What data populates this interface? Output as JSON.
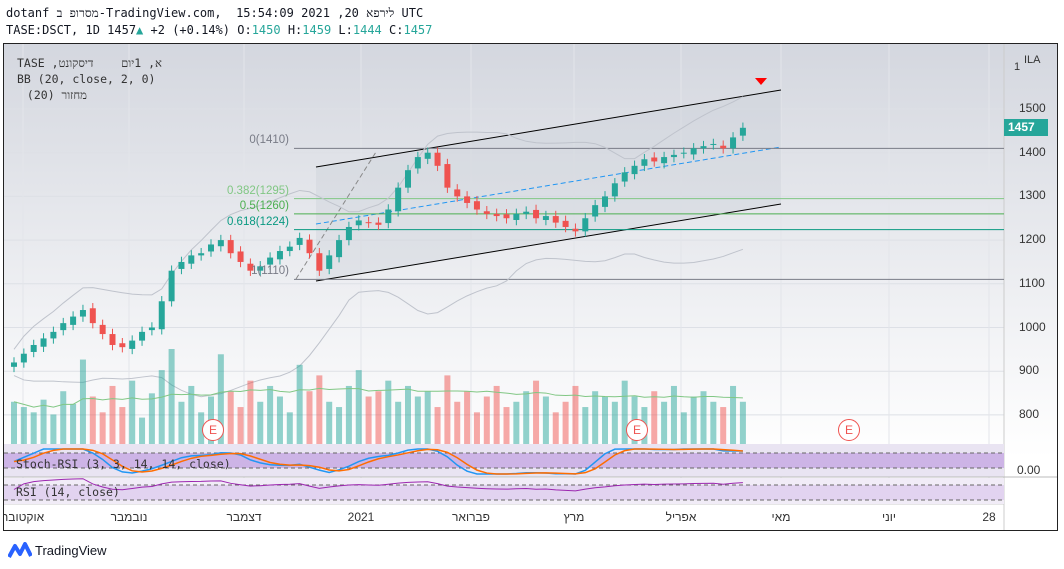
{
  "header": {
    "line1": "dotanf מסרופ ב-TradingView.com,  לירפא 20, 2021 15:54:09 UTC",
    "symbol": "TASE:DSCT, 1D 1457",
    "change": "+2 (+0.14%)",
    "o_label": "O:",
    "o": "1450",
    "h_label": "H:",
    "h": "1459",
    "l_label": "L:",
    "l": "1444",
    "c_label": "C:",
    "c": "1457"
  },
  "legend": {
    "title": "TASE ,א, 1יום    דיסקונט",
    "bb": "BB (20, close, 2, 0)",
    "vol": " (20) מחזור"
  },
  "indicators": {
    "stoch": "Stoch-RSI (3, 3, 14, 14, close)",
    "stoch_value": "0.00",
    "rsi": "RSI (14, close)"
  },
  "price_axis": {
    "unit": "ILA",
    "top": "1",
    "ticks": [
      "1500",
      "1400",
      "1300",
      "1200",
      "1100",
      "1000",
      "900",
      "800"
    ],
    "last": "1457"
  },
  "fib": [
    {
      "label": "0(1410)",
      "v": 1410,
      "color": "#787b86"
    },
    {
      "label": "0.382(1295)",
      "v": 1295,
      "color": "#81c784"
    },
    {
      "label": "0.5(1260)",
      "v": 1260,
      "color": "#4caf50"
    },
    {
      "label": "0.618(1224)",
      "v": 1224,
      "color": "#089981"
    },
    {
      "label": "1(1110)",
      "v": 1110,
      "color": "#787b86"
    }
  ],
  "events": [
    "E",
    "E",
    "E"
  ],
  "colors": {
    "up": "#26a69a",
    "down": "#ef5350",
    "accent": "#26a69a"
  },
  "time_axis": [
    "אוקטובר",
    "נובמבר",
    "דצמבר",
    "2021",
    "פברואר",
    "מרץ",
    "אפריל",
    "מאי",
    "יוני",
    "28"
  ],
  "brand": "TradingView",
  "chart_data": {
    "type": "candlestick",
    "title": "TASE:DSCT, 1D",
    "ylabel": "ILA",
    "ylim": [
      780,
      1560
    ],
    "closes": [
      920,
      940,
      960,
      975,
      990,
      1010,
      1025,
      1040,
      1010,
      985,
      960,
      955,
      970,
      990,
      1000,
      1060,
      1130,
      1150,
      1165,
      1170,
      1190,
      1200,
      1170,
      1150,
      1130,
      1140,
      1160,
      1175,
      1185,
      1205,
      1170,
      1130,
      1165,
      1200,
      1230,
      1245,
      1240,
      1235,
      1270,
      1320,
      1360,
      1390,
      1400,
      1370,
      1320,
      1300,
      1285,
      1270,
      1260,
      1255,
      1250,
      1260,
      1265,
      1250,
      1255,
      1240,
      1230,
      1220,
      1250,
      1280,
      1300,
      1330,
      1355,
      1370,
      1385,
      1380,
      1390,
      1395,
      1400,
      1410,
      1415,
      1420,
      1410,
      1435,
      1457
    ],
    "volumes": [
      40,
      35,
      30,
      42,
      28,
      50,
      38,
      80,
      45,
      30,
      55,
      35,
      60,
      25,
      48,
      70,
      90,
      40,
      55,
      30,
      45,
      85,
      50,
      35,
      60,
      40,
      55,
      45,
      30,
      75,
      50,
      65,
      40,
      35,
      55,
      70,
      45,
      50,
      60,
      40,
      55,
      45,
      50,
      35,
      65,
      40,
      50,
      30,
      45,
      55,
      35,
      40,
      50,
      60,
      45,
      30,
      40,
      55,
      35,
      50,
      45,
      40,
      60,
      45,
      35,
      50,
      40,
      55,
      30,
      45,
      50,
      40,
      35,
      55,
      40
    ]
  }
}
